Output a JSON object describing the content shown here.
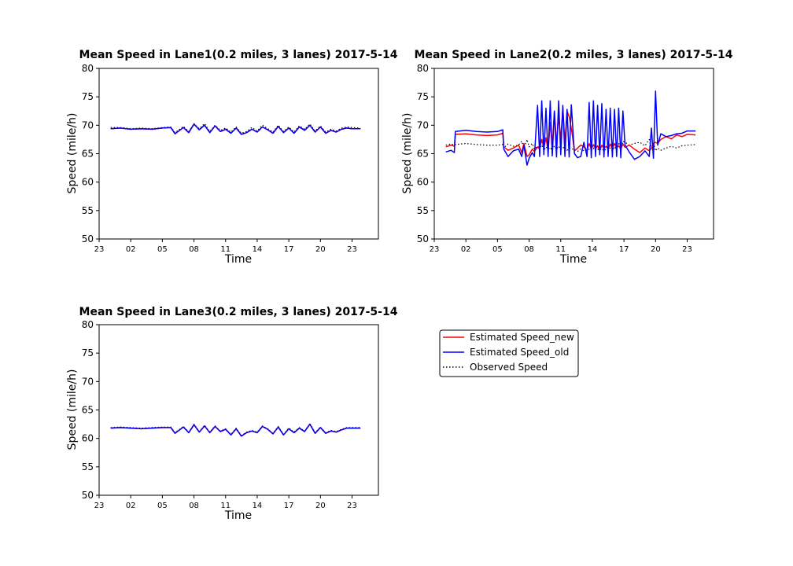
{
  "chart_data": [
    {
      "type": "line",
      "title": "Mean Speed in Lane1(0.2 miles, 3 lanes) 2017-5-14",
      "xlabel": "Time",
      "ylabel": "Speed (mile/h)",
      "ylim": [
        50,
        80
      ],
      "yticks": [
        50,
        55,
        60,
        65,
        70,
        75,
        80
      ],
      "xlim_hours": [
        23,
        49.5
      ],
      "xticks": [
        {
          "h": 23,
          "label": "23"
        },
        {
          "h": 26,
          "label": "02"
        },
        {
          "h": 29,
          "label": "05"
        },
        {
          "h": 32,
          "label": "08"
        },
        {
          "h": 35,
          "label": "11"
        },
        {
          "h": 38,
          "label": "14"
        },
        {
          "h": 41,
          "label": "17"
        },
        {
          "h": 44,
          "label": "20"
        },
        {
          "h": 47,
          "label": "23"
        }
      ],
      "x_hours": [
        24.1,
        25.0,
        26.0,
        27.0,
        28.0,
        29.0,
        29.8,
        30.2,
        31.0,
        31.5,
        32.0,
        32.5,
        33.0,
        33.5,
        34.0,
        34.5,
        35.0,
        35.5,
        36.0,
        36.5,
        37.0,
        37.5,
        38.0,
        38.5,
        39.0,
        39.5,
        40.0,
        40.5,
        41.0,
        41.5,
        42.0,
        42.5,
        43.0,
        43.5,
        44.0,
        44.5,
        45.0,
        45.5,
        46.0,
        46.5,
        47.0,
        47.8
      ],
      "series": [
        {
          "name": "Estimated Speed_new",
          "color": "#ff0000",
          "style": "solid",
          "values": [
            69.4,
            69.5,
            69.3,
            69.4,
            69.3,
            69.5,
            69.6,
            68.5,
            69.6,
            68.7,
            70.2,
            69.2,
            70.0,
            68.7,
            69.9,
            68.9,
            69.3,
            68.6,
            69.5,
            68.4,
            68.7,
            69.3,
            68.8,
            69.7,
            69.2,
            68.6,
            69.8,
            68.7,
            69.5,
            68.6,
            69.7,
            69.1,
            70.0,
            68.8,
            69.7,
            68.6,
            69.1,
            68.8,
            69.3,
            69.5,
            69.4,
            69.4
          ]
        },
        {
          "name": "Estimated Speed_old",
          "color": "#0000ff",
          "style": "solid",
          "values": [
            69.4,
            69.5,
            69.3,
            69.4,
            69.3,
            69.5,
            69.6,
            68.5,
            69.6,
            68.7,
            70.2,
            69.2,
            70.0,
            68.7,
            69.9,
            68.9,
            69.3,
            68.6,
            69.5,
            68.4,
            68.7,
            69.3,
            68.8,
            69.7,
            69.2,
            68.6,
            69.8,
            68.7,
            69.5,
            68.6,
            69.7,
            69.1,
            70.0,
            68.8,
            69.7,
            68.6,
            69.1,
            68.8,
            69.3,
            69.5,
            69.4,
            69.4
          ]
        },
        {
          "name": "Observed Speed",
          "color": "#000000",
          "style": "dotted",
          "values": [
            69.6,
            69.6,
            69.4,
            69.5,
            69.4,
            69.6,
            69.7,
            68.7,
            69.8,
            68.9,
            70.3,
            69.4,
            70.3,
            68.9,
            70.0,
            69.1,
            69.5,
            68.8,
            69.7,
            68.6,
            68.9,
            69.6,
            69.0,
            70.0,
            69.4,
            68.8,
            70.0,
            68.9,
            69.7,
            68.8,
            69.9,
            69.3,
            70.2,
            69.0,
            69.9,
            68.8,
            69.3,
            69.0,
            69.5,
            69.7,
            69.6,
            69.5
          ]
        }
      ]
    },
    {
      "type": "line",
      "title": "Mean Speed in Lane2(0.2 miles, 3 lanes) 2017-5-14",
      "xlabel": "Time",
      "ylabel": "Speed (mile/h)",
      "ylim": [
        50,
        80
      ],
      "yticks": [
        50,
        55,
        60,
        65,
        70,
        75,
        80
      ],
      "xlim_hours": [
        23,
        49.5
      ],
      "xticks": [
        {
          "h": 23,
          "label": "23"
        },
        {
          "h": 26,
          "label": "02"
        },
        {
          "h": 29,
          "label": "05"
        },
        {
          "h": 32,
          "label": "08"
        },
        {
          "h": 35,
          "label": "11"
        },
        {
          "h": 38,
          "label": "14"
        },
        {
          "h": 41,
          "label": "17"
        },
        {
          "h": 44,
          "label": "20"
        },
        {
          "h": 47,
          "label": "23"
        }
      ],
      "x_hours": [
        24.1,
        24.6,
        24.9,
        25.0,
        26.0,
        27.0,
        28.0,
        29.0,
        29.5,
        29.6,
        30.0,
        30.5,
        31.0,
        31.3,
        31.5,
        31.8,
        32.0,
        32.3,
        32.5,
        32.8,
        33.0,
        33.2,
        33.4,
        33.6,
        33.8,
        34.0,
        34.2,
        34.4,
        34.6,
        34.8,
        35.0,
        35.2,
        35.4,
        35.6,
        35.8,
        36.0,
        36.3,
        36.6,
        36.9,
        37.2,
        37.5,
        37.7,
        37.9,
        38.1,
        38.3,
        38.5,
        38.7,
        38.9,
        39.1,
        39.3,
        39.5,
        39.7,
        39.9,
        40.1,
        40.3,
        40.5,
        40.7,
        40.9,
        41.1,
        41.5,
        42.0,
        42.5,
        43.0,
        43.4,
        43.6,
        43.8,
        44.0,
        44.2,
        44.5,
        45.0,
        45.5,
        46.0,
        46.5,
        47.0,
        47.8
      ],
      "series": [
        {
          "name": "Estimated Speed_new",
          "color": "#ff0000",
          "style": "solid",
          "values": [
            66.2,
            66.5,
            66.3,
            68.4,
            68.5,
            68.3,
            68.2,
            68.3,
            68.6,
            66.2,
            65.6,
            66.0,
            66.5,
            65.2,
            66.8,
            64.5,
            64.8,
            65.8,
            65.4,
            66.2,
            65.8,
            67.5,
            66.0,
            67.8,
            65.5,
            70.5,
            66.2,
            72.5,
            66.8,
            71.5,
            67.5,
            73.0,
            67.0,
            72.5,
            71.5,
            69.5,
            65.5,
            66.0,
            66.5,
            66.2,
            65.6,
            66.8,
            65.8,
            66.6,
            65.9,
            66.4,
            65.6,
            66.5,
            65.9,
            66.3,
            65.8,
            66.7,
            65.9,
            66.8,
            66.0,
            66.4,
            65.8,
            66.7,
            66.1,
            66.5,
            65.8,
            65.2,
            66.0,
            65.5,
            65.9,
            66.8,
            67.0,
            66.8,
            67.5,
            68.0,
            67.6,
            68.3,
            68.0,
            68.4,
            68.3
          ]
        },
        {
          "name": "Estimated Speed_old",
          "color": "#0000ff",
          "style": "solid",
          "values": [
            65.3,
            65.6,
            65.2,
            68.9,
            69.1,
            68.9,
            68.8,
            68.9,
            69.2,
            65.8,
            64.5,
            65.5,
            65.8,
            64.5,
            66.5,
            63.0,
            64.2,
            65.2,
            64.5,
            73.5,
            64.5,
            74.3,
            64.8,
            73.0,
            64.5,
            74.3,
            64.6,
            72.5,
            64.4,
            74.3,
            64.8,
            73.5,
            64.5,
            72.8,
            64.4,
            73.6,
            65.0,
            64.3,
            64.5,
            67.0,
            64.5,
            74.0,
            64.3,
            74.3,
            64.5,
            73.5,
            64.8,
            73.8,
            64.4,
            72.8,
            64.5,
            73.0,
            64.4,
            72.8,
            64.5,
            73.0,
            64.3,
            72.5,
            66.5,
            65.3,
            64.0,
            64.5,
            65.5,
            64.5,
            69.5,
            64.2,
            76.0,
            66.5,
            68.5,
            68.0,
            68.2,
            68.5,
            68.6,
            69.0,
            69.0
          ]
        },
        {
          "name": "Observed Speed",
          "color": "#000000",
          "style": "dotted",
          "values": [
            66.5,
            66.7,
            66.5,
            66.6,
            66.8,
            66.6,
            66.5,
            66.5,
            66.6,
            66.0,
            66.7,
            66.3,
            66.5,
            67.2,
            66.0,
            67.5,
            66.2,
            66.8,
            65.8,
            66.3,
            66.0,
            66.5,
            65.6,
            66.2,
            65.8,
            66.1,
            65.6,
            66.4,
            65.8,
            66.3,
            65.7,
            66.0,
            66.2,
            65.6,
            66.0,
            65.8,
            65.8,
            65.4,
            65.8,
            65.5,
            65.5,
            65.8,
            65.6,
            66.0,
            65.5,
            65.8,
            65.6,
            65.9,
            65.5,
            65.8,
            65.6,
            66.0,
            65.5,
            66.2,
            65.7,
            66.8,
            66.0,
            67.2,
            67.0,
            66.5,
            66.8,
            67.0,
            66.4,
            67.5,
            66.0,
            67.0,
            65.5,
            66.0,
            65.6,
            66.0,
            66.3,
            66.0,
            66.4,
            66.5,
            66.6
          ]
        }
      ]
    },
    {
      "type": "line",
      "title": "Mean Speed in Lane3(0.2 miles, 3 lanes) 2017-5-14",
      "xlabel": "Time",
      "ylabel": "Speed (mile/h)",
      "ylim": [
        50,
        80
      ],
      "yticks": [
        50,
        55,
        60,
        65,
        70,
        75,
        80
      ],
      "xlim_hours": [
        23,
        49.5
      ],
      "xticks": [
        {
          "h": 23,
          "label": "23"
        },
        {
          "h": 26,
          "label": "02"
        },
        {
          "h": 29,
          "label": "05"
        },
        {
          "h": 32,
          "label": "08"
        },
        {
          "h": 35,
          "label": "11"
        },
        {
          "h": 38,
          "label": "14"
        },
        {
          "h": 41,
          "label": "17"
        },
        {
          "h": 44,
          "label": "20"
        },
        {
          "h": 47,
          "label": "23"
        }
      ],
      "x_hours": [
        24.1,
        25.0,
        26.0,
        27.0,
        28.0,
        29.0,
        29.8,
        30.2,
        31.0,
        31.5,
        32.0,
        32.5,
        33.0,
        33.5,
        34.0,
        34.5,
        35.0,
        35.5,
        36.0,
        36.5,
        37.0,
        37.5,
        38.0,
        38.5,
        39.0,
        39.5,
        40.0,
        40.5,
        41.0,
        41.5,
        42.0,
        42.5,
        43.0,
        43.5,
        44.0,
        44.5,
        45.0,
        45.5,
        46.0,
        46.5,
        47.0,
        47.8
      ],
      "series": [
        {
          "name": "Estimated Speed_new",
          "color": "#ff0000",
          "style": "solid",
          "values": [
            61.8,
            61.9,
            61.8,
            61.7,
            61.8,
            61.9,
            61.9,
            60.9,
            62.0,
            61.0,
            62.4,
            61.1,
            62.2,
            61.0,
            62.1,
            61.2,
            61.6,
            60.6,
            61.7,
            60.4,
            61.0,
            61.3,
            61.0,
            62.1,
            61.6,
            60.8,
            62.0,
            60.6,
            61.7,
            61.0,
            61.8,
            61.2,
            62.5,
            60.9,
            61.9,
            60.9,
            61.3,
            61.1,
            61.5,
            61.8,
            61.8,
            61.8
          ]
        },
        {
          "name": "Estimated Speed_old",
          "color": "#0000ff",
          "style": "solid",
          "values": [
            61.8,
            61.9,
            61.8,
            61.7,
            61.8,
            61.9,
            61.9,
            60.9,
            62.0,
            61.0,
            62.4,
            61.1,
            62.2,
            61.0,
            62.1,
            61.2,
            61.6,
            60.6,
            61.7,
            60.4,
            61.0,
            61.3,
            61.0,
            62.1,
            61.6,
            60.8,
            62.0,
            60.6,
            61.7,
            61.0,
            61.8,
            61.2,
            62.5,
            60.9,
            61.9,
            60.9,
            61.3,
            61.1,
            61.5,
            61.8,
            61.8,
            61.8
          ]
        },
        {
          "name": "Observed Speed",
          "color": "#000000",
          "style": "dotted",
          "values": [
            61.9,
            62.0,
            61.9,
            61.8,
            61.9,
            62.0,
            62.0,
            61.0,
            62.1,
            61.1,
            62.5,
            61.2,
            62.3,
            61.1,
            62.2,
            61.3,
            61.7,
            60.7,
            61.8,
            60.5,
            61.1,
            61.4,
            61.1,
            62.2,
            61.7,
            60.9,
            62.1,
            60.7,
            61.8,
            61.1,
            61.9,
            61.3,
            62.6,
            61.0,
            62.0,
            61.0,
            61.4,
            61.2,
            61.6,
            61.9,
            61.9,
            61.9
          ]
        }
      ]
    }
  ],
  "legend": {
    "placement": "right of lane 3 panel",
    "entries": [
      {
        "label": "Estimated Speed_new",
        "color": "#ff0000",
        "style": "solid"
      },
      {
        "label": "Estimated Speed_old",
        "color": "#0000ff",
        "style": "solid"
      },
      {
        "label": "Observed Speed",
        "color": "#000000",
        "style": "dotted"
      }
    ]
  }
}
